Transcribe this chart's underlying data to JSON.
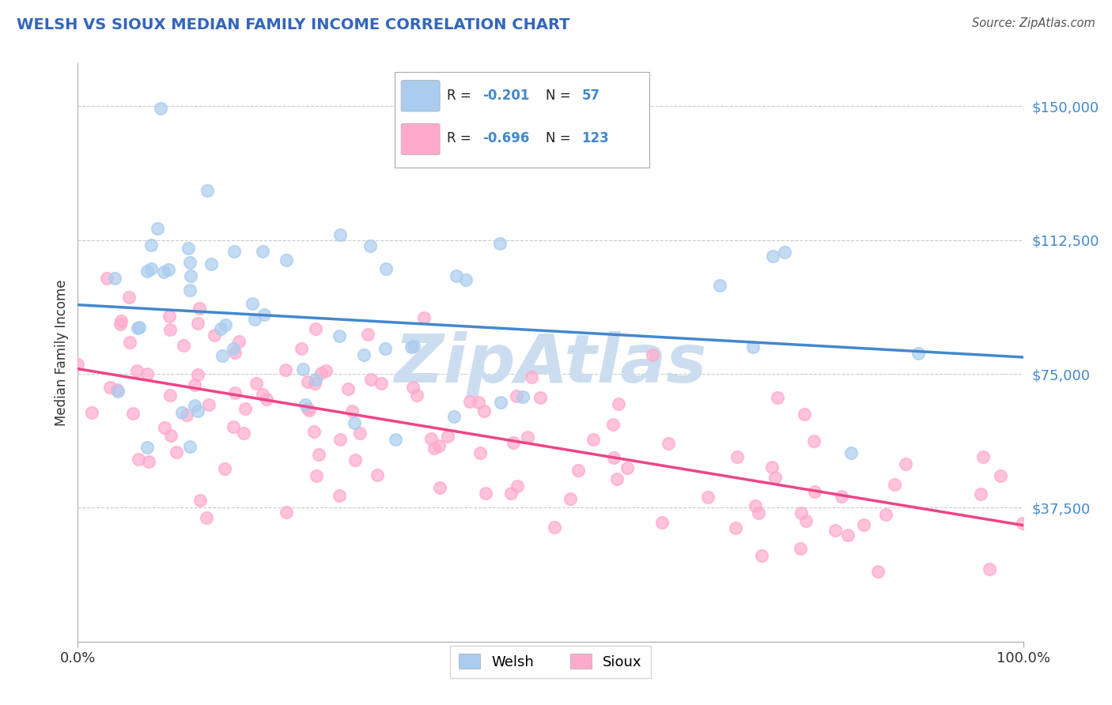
{
  "title": "WELSH VS SIOUX MEDIAN FAMILY INCOME CORRELATION CHART",
  "source": "Source: ZipAtlas.com",
  "ylabel": "Median Family Income",
  "welsh_R": -0.201,
  "welsh_N": 57,
  "sioux_R": -0.696,
  "sioux_N": 123,
  "welsh_color": "#aaccee",
  "sioux_color": "#ffaacc",
  "welsh_line_color": "#4488cc",
  "sioux_line_color": "#ee4488",
  "title_color": "#3366bb",
  "ytick_color": "#4488cc",
  "watermark_color": "#ccddf0",
  "background_color": "#ffffff",
  "grid_color": "#cccccc",
  "welsh_intercept": 88000,
  "welsh_slope": -16000,
  "sioux_intercept": 76000,
  "sioux_slope": -45000,
  "seed_welsh": 42,
  "seed_sioux": 99,
  "yticks": [
    0,
    37500,
    75000,
    112500,
    150000
  ],
  "ytick_labels": [
    "",
    "$37,500",
    "$75,000",
    "$112,500",
    "$150,000"
  ]
}
